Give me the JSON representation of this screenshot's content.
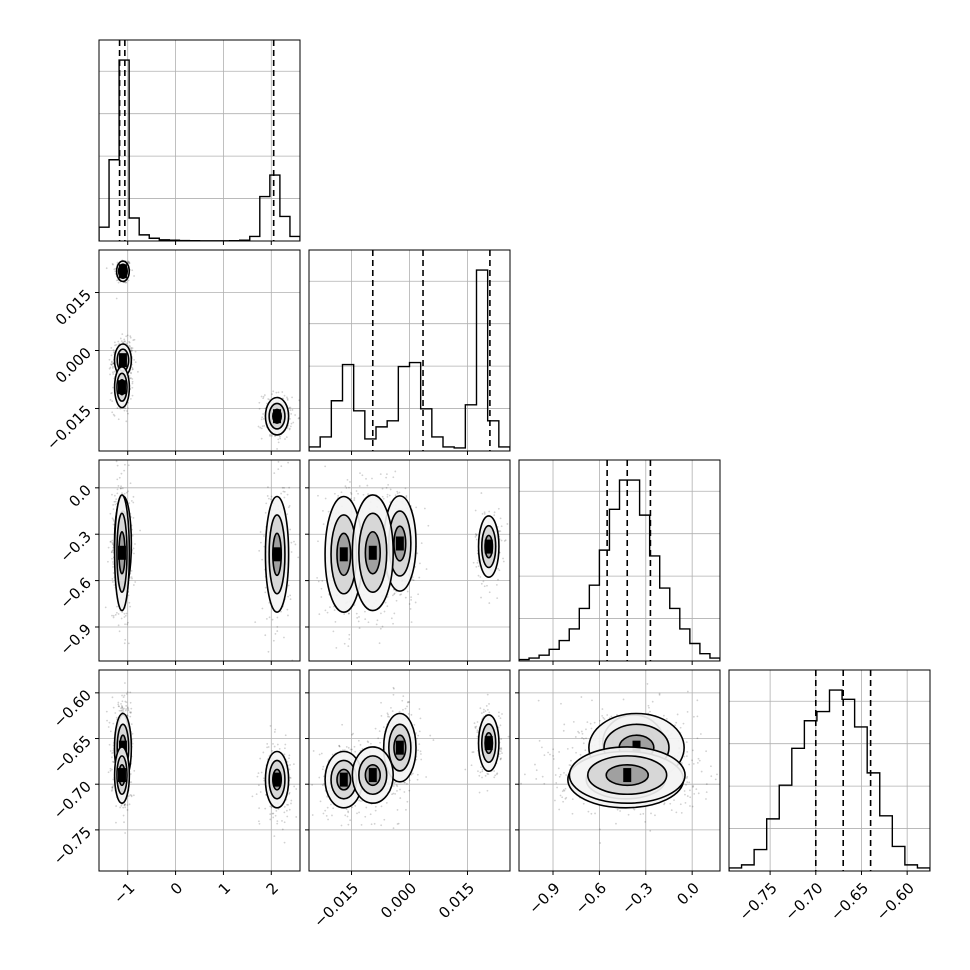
{
  "chart_data": {
    "type": "corner",
    "title": "",
    "grid": true,
    "params": [
      {
        "range": [
          -1.6,
          2.6
        ],
        "ticks": [
          -1,
          0,
          1,
          2
        ],
        "tick_labels": [
          "−1",
          "0",
          "1",
          "2"
        ],
        "quantiles": [
          -1.17,
          -1.06,
          2.05
        ]
      },
      {
        "range": [
          -0.026,
          0.026
        ],
        "ticks": [
          -0.015,
          0.0,
          0.015
        ],
        "tick_labels": [
          "−0.015",
          "0.000",
          "0.015"
        ],
        "quantiles": [
          -0.0095,
          0.0035,
          0.0208
        ]
      },
      {
        "range": [
          -1.12,
          0.18
        ],
        "ticks": [
          -0.9,
          -0.6,
          -0.3,
          0.0
        ],
        "tick_labels": [
          "−0.9",
          "−0.6",
          "−0.3",
          "0.0"
        ],
        "quantiles": [
          -0.55,
          -0.42,
          -0.27
        ]
      },
      {
        "range": [
          -0.795,
          -0.575
        ],
        "ticks": [
          -0.75,
          -0.7,
          -0.65,
          -0.6
        ],
        "tick_labels": [
          "−0.75",
          "−0.70",
          "−0.65",
          "−0.60"
        ],
        "quantiles": [
          -0.7,
          -0.67,
          -0.64
        ]
      }
    ],
    "histograms": [
      {
        "param": 0,
        "counts": [
          90,
          530,
          1180,
          150,
          40,
          18,
          8,
          5,
          3,
          2,
          1,
          1,
          1,
          2,
          5,
          30,
          290,
          430,
          160,
          30
        ]
      },
      {
        "param": 1,
        "counts": [
          20,
          70,
          250,
          430,
          200,
          60,
          120,
          150,
          420,
          440,
          210,
          70,
          20,
          15,
          230,
          900,
          150,
          20
        ]
      },
      {
        "param": 2,
        "counts": [
          5,
          10,
          20,
          40,
          70,
          110,
          180,
          260,
          380,
          520,
          620,
          620,
          500,
          360,
          250,
          180,
          110,
          60,
          25,
          10
        ]
      },
      {
        "param": 3,
        "counts": [
          10,
          20,
          70,
          170,
          280,
          400,
          490,
          520,
          590,
          560,
          470,
          320,
          180,
          80,
          20,
          10
        ]
      }
    ],
    "clusters": [
      {
        "means": [
          -1.1,
          0.0205,
          -0.38,
          -0.655
        ],
        "sds": [
          0.06,
          0.0012,
          0.09,
          0.014
        ],
        "weight": 0.22
      },
      {
        "means": [
          -1.1,
          -0.0025,
          -0.36,
          -0.66
        ],
        "sds": [
          0.08,
          0.0019,
          0.14,
          0.017
        ],
        "weight": 0.3
      },
      {
        "means": [
          2.12,
          -0.017,
          -0.43,
          -0.695
        ],
        "sds": [
          0.11,
          0.0022,
          0.17,
          0.014
        ],
        "weight": 0.28
      },
      {
        "means": [
          -1.12,
          -0.0095,
          -0.42,
          -0.69
        ],
        "sds": [
          0.07,
          0.0024,
          0.17,
          0.014
        ],
        "weight": 0.2
      }
    ],
    "background_scatter": {
      "between_x": [
        -1.0,
        1.6
      ],
      "y_var": 0,
      "note_y": [
        -0.003,
        0.006
      ]
    }
  }
}
